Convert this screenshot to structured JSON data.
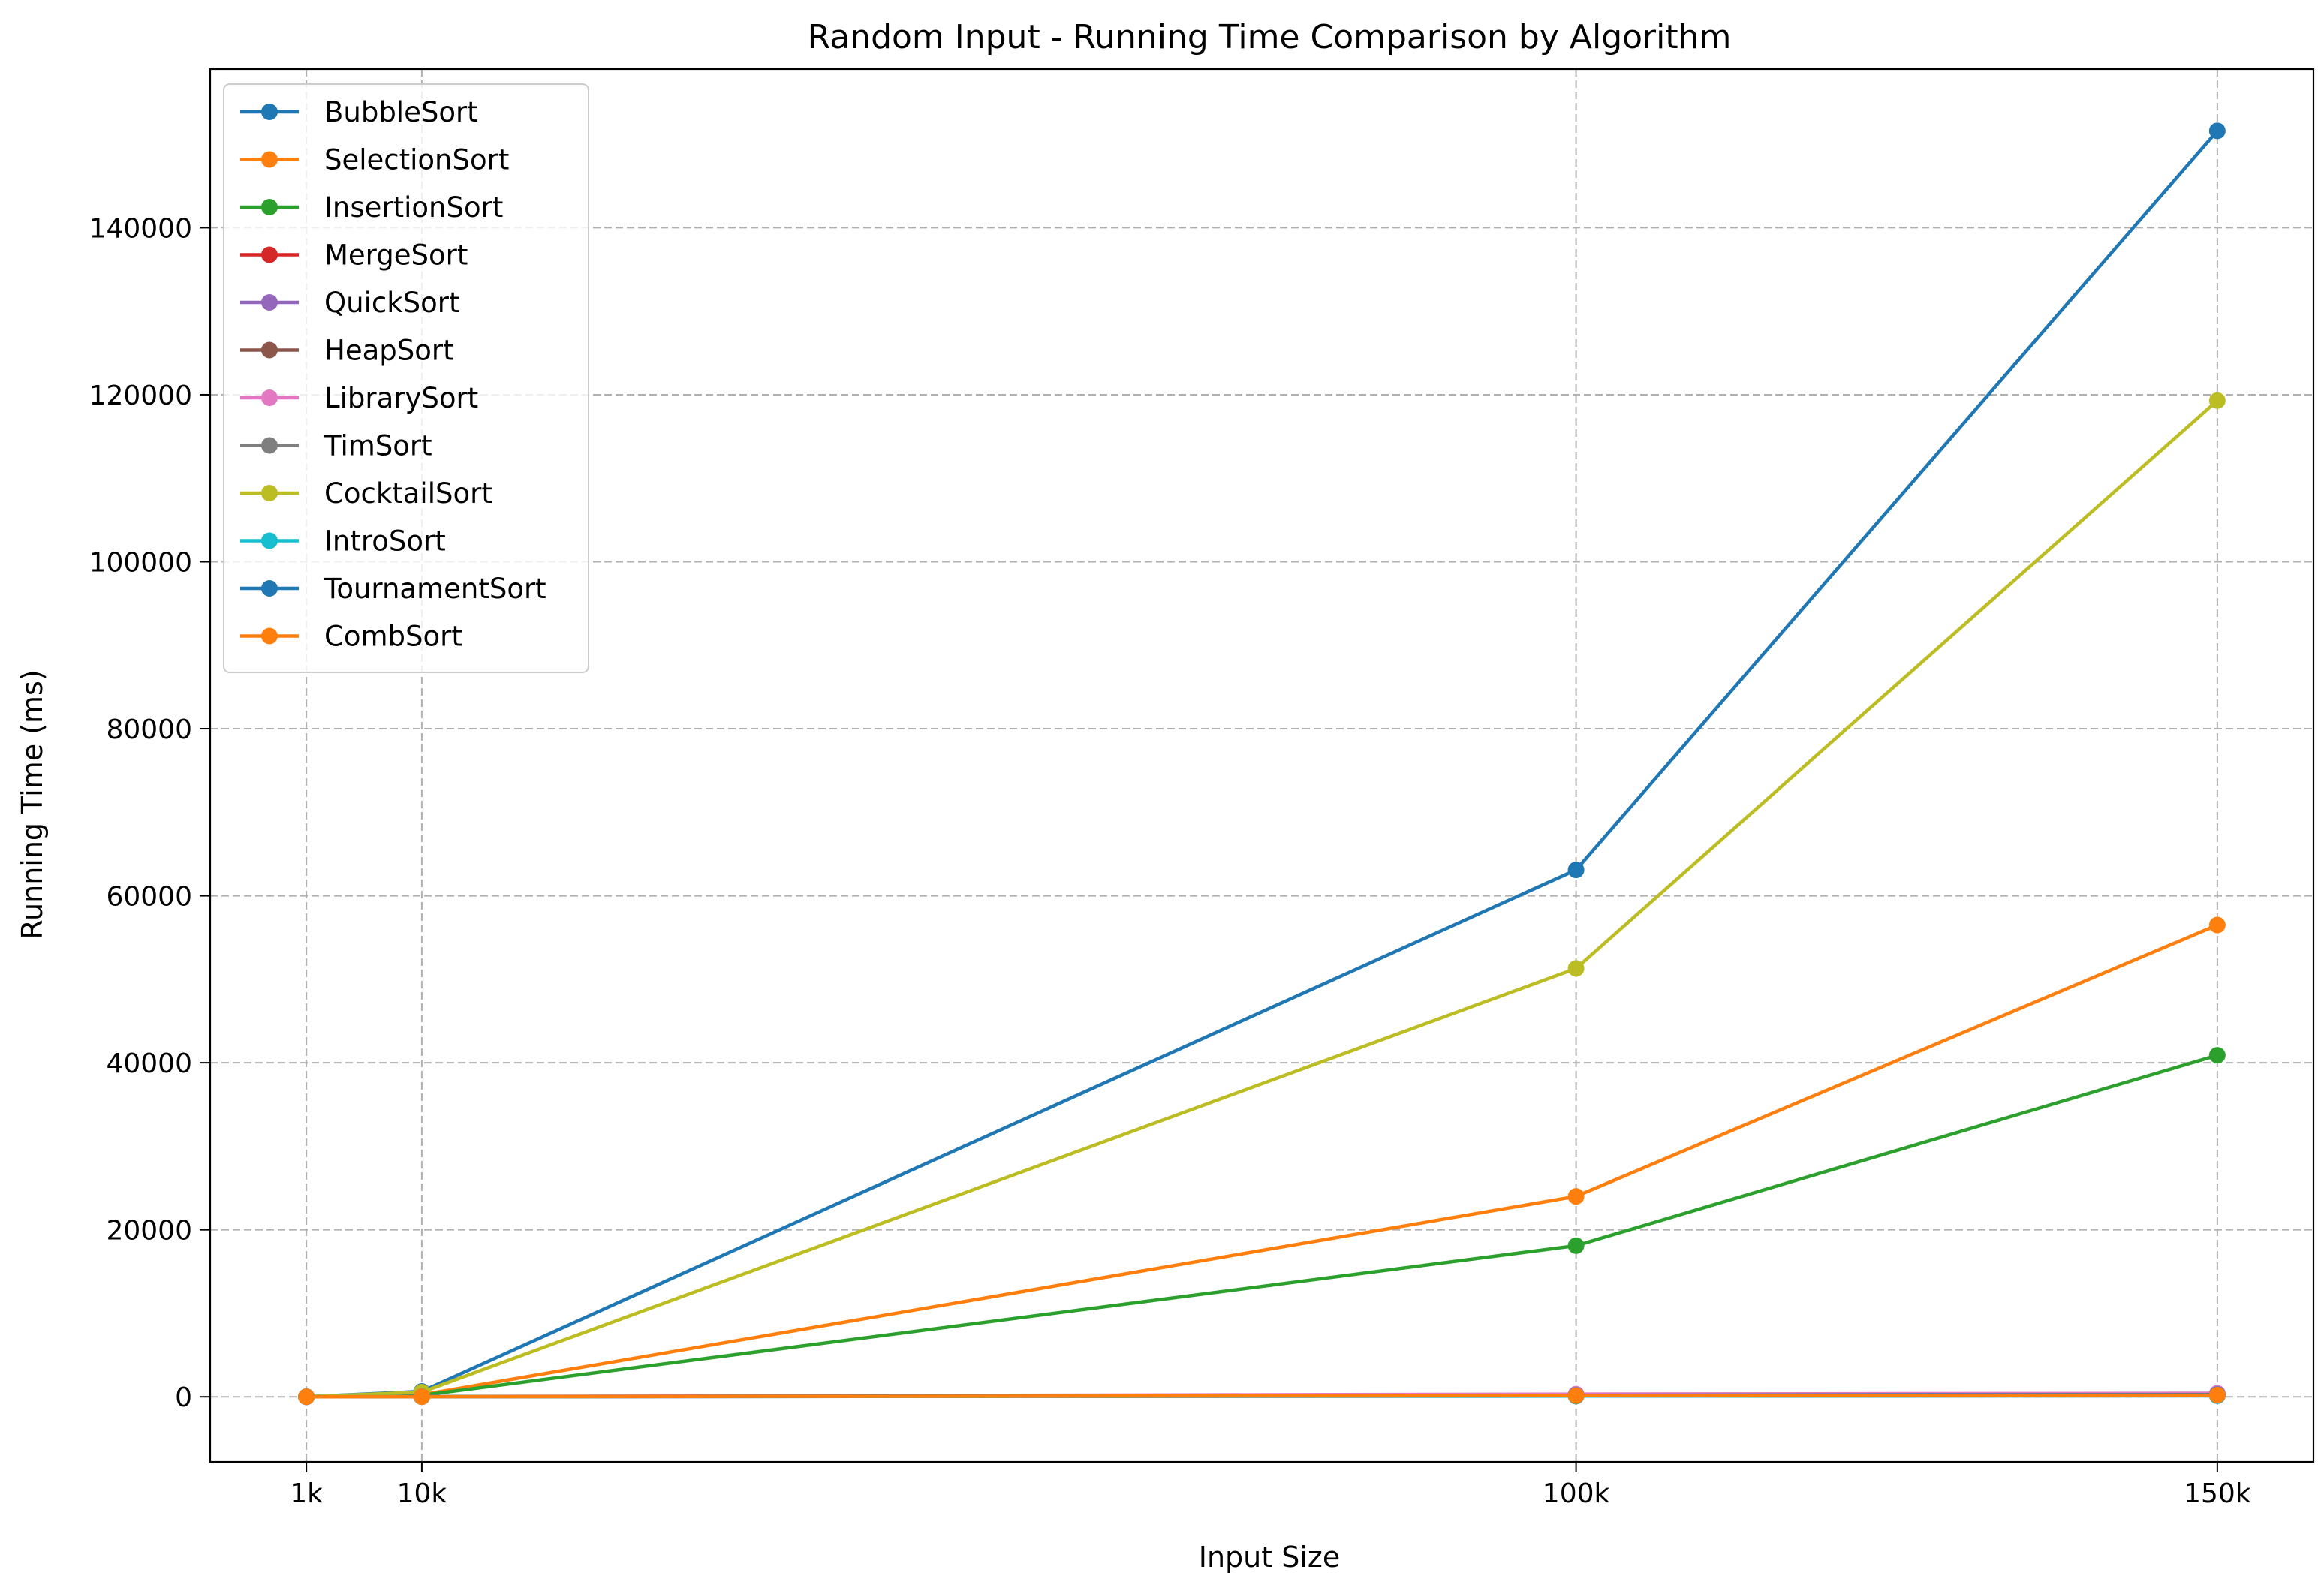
{
  "chart_data": {
    "type": "line",
    "title": "Random Input - Running Time Comparison by Algorithm",
    "xlabel": "Input Size",
    "ylabel": "Running Time (ms)",
    "x": [
      1000,
      10000,
      100000,
      150000
    ],
    "x_tick_labels": [
      "1k",
      "10k",
      "100k",
      "150k"
    ],
    "xlim": [
      -6500,
      157500
    ],
    "ylim": [
      -7800,
      159000
    ],
    "y_ticks": [
      0,
      20000,
      40000,
      60000,
      80000,
      100000,
      120000,
      140000
    ],
    "y_tick_labels": [
      "0",
      "20000",
      "40000",
      "60000",
      "80000",
      "100000",
      "120000",
      "140000"
    ],
    "grid": true,
    "legend_position": "top-left",
    "series": [
      {
        "name": "BubbleSort",
        "color": "#1f77b4",
        "values": [
          10,
          650,
          63100,
          151600
        ]
      },
      {
        "name": "SelectionSort",
        "color": "#ff7f0e",
        "values": [
          5,
          240,
          24000,
          56500
        ]
      },
      {
        "name": "InsertionSort",
        "color": "#2ca02c",
        "values": [
          3,
          180,
          18100,
          40900
        ]
      },
      {
        "name": "MergeSort",
        "color": "#d62728",
        "values": [
          1,
          10,
          120,
          180
        ]
      },
      {
        "name": "QuickSort",
        "color": "#9467bd",
        "values": [
          1,
          8,
          100,
          150
        ]
      },
      {
        "name": "HeapSort",
        "color": "#8c564b",
        "values": [
          1,
          12,
          150,
          240
        ]
      },
      {
        "name": "LibrarySort",
        "color": "#e377c2",
        "values": [
          2,
          25,
          320,
          420
        ]
      },
      {
        "name": "TimSort",
        "color": "#7f7f7f",
        "values": [
          1,
          6,
          80,
          120
        ]
      },
      {
        "name": "CocktailSort",
        "color": "#bcbd22",
        "values": [
          8,
          560,
          51300,
          119300
        ]
      },
      {
        "name": "IntroSort",
        "color": "#17becf",
        "values": [
          1,
          7,
          90,
          130
        ]
      },
      {
        "name": "TournamentSort",
        "color": "#1f77b4",
        "values": [
          1,
          15,
          180,
          270
        ]
      },
      {
        "name": "CombSort",
        "color": "#ff7f0e",
        "values": [
          1,
          12,
          140,
          210
        ]
      }
    ]
  }
}
